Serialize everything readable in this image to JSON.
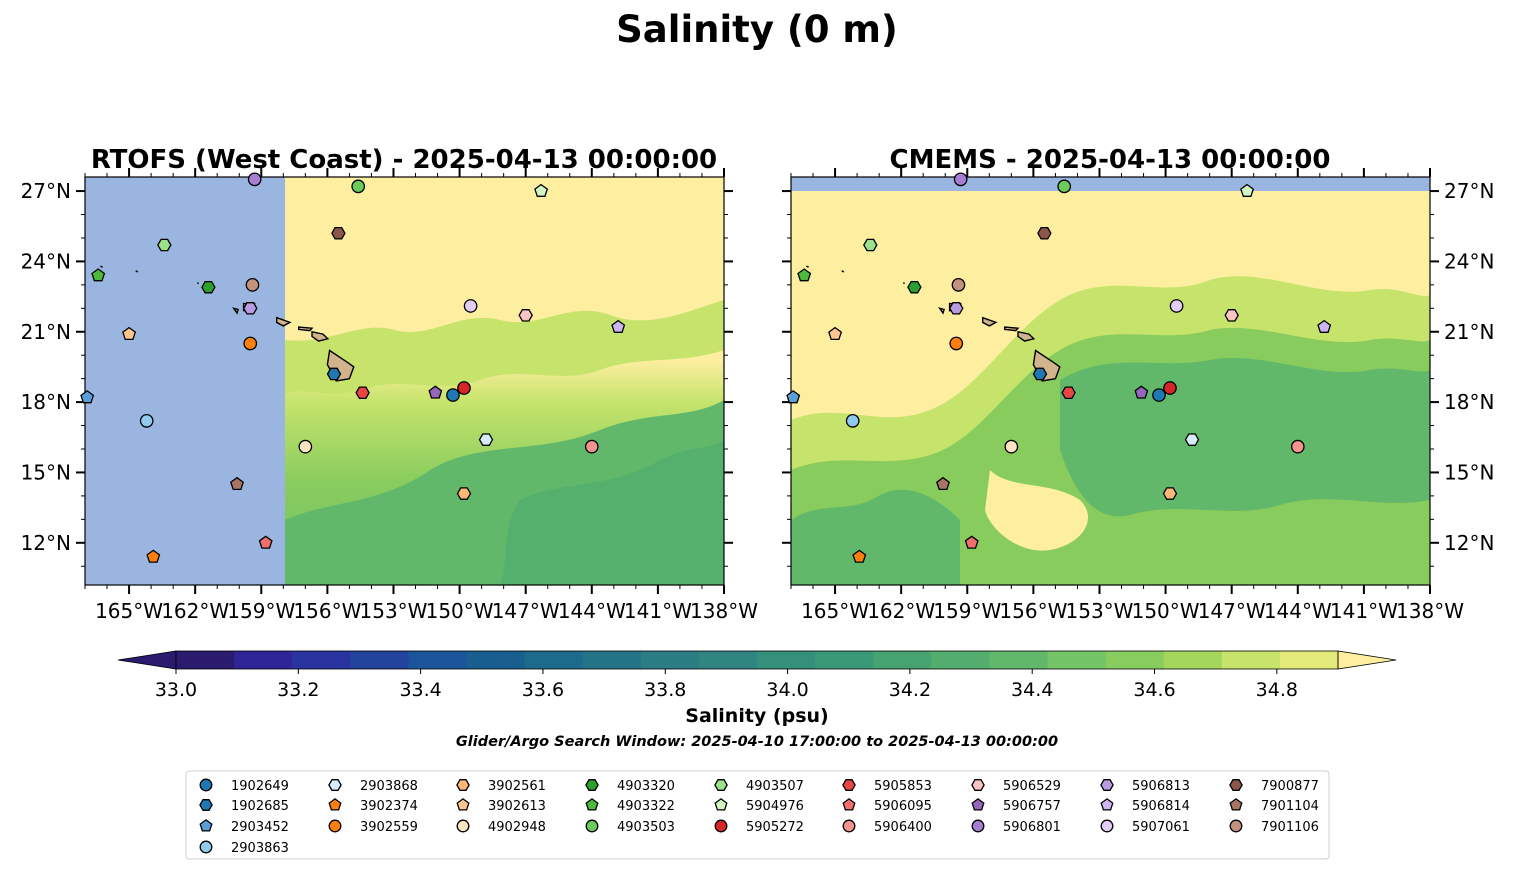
{
  "figure": {
    "title": "Salinity (0 m)",
    "search_window": "Glider/Argo Search Window: 2025-04-10 17:00:00 to 2025-04-13 00:00:00"
  },
  "panels": [
    {
      "id": "rtofs",
      "title": "RTOFS (West Coast) - 2025-04-13 00:00:00",
      "lat_labels_side": "left"
    },
    {
      "id": "cmems",
      "title": "CMEMS - 2025-04-13 00:00:00",
      "lat_labels_side": "right"
    }
  ],
  "axes": {
    "lon_ticks": [
      "165°W",
      "162°W",
      "159°W",
      "156°W",
      "153°W",
      "150°W",
      "147°W",
      "144°W",
      "141°W",
      "138°W"
    ],
    "lat_ticks": [
      "27°N",
      "24°N",
      "21°N",
      "18°N",
      "15°N",
      "12°N"
    ],
    "lon_values": [
      -165,
      -162,
      -159,
      -156,
      -153,
      -150,
      -147,
      -144,
      -141,
      -138
    ],
    "lat_values": [
      27,
      24,
      21,
      18,
      15,
      12
    ],
    "lon_range": [
      -167,
      -138
    ],
    "lat_range": [
      10.2,
      27.6
    ]
  },
  "colorbar": {
    "label": "Salinity (psu)",
    "tick_labels": [
      "33.0",
      "33.2",
      "33.4",
      "33.6",
      "33.8",
      "34.0",
      "34.2",
      "34.4",
      "34.6",
      "34.8"
    ],
    "tick_values": [
      33.0,
      33.2,
      33.4,
      33.6,
      33.8,
      34.0,
      34.2,
      34.4,
      34.6,
      34.8
    ],
    "range": [
      33.0,
      34.9
    ],
    "step": 0.1,
    "extend": "both",
    "colors": [
      "#2b1b6e",
      "#2f2596",
      "#2a34a0",
      "#22449d",
      "#1b549a",
      "#185f8f",
      "#1c6a8c",
      "#237486",
      "#2a7d83",
      "#2f8680",
      "#348f7b",
      "#399876",
      "#45a372",
      "#52ad6e",
      "#62b86a",
      "#73c466",
      "#88cc5e",
      "#a3d65b",
      "#c6e46c",
      "#e4ea7a"
    ],
    "land_mask_color": "#99b5e0",
    "high_color": "#fdeea0"
  },
  "floats": [
    {
      "id": "1902649",
      "marker": "circle",
      "color": "#1f77b4",
      "lon": -150.3,
      "lat": 18.3
    },
    {
      "id": "1902685",
      "marker": "hexagon",
      "color": "#1f77b4",
      "lon": -155.7,
      "lat": 19.2
    },
    {
      "id": "2903452",
      "marker": "pentagon",
      "color": "#5a9fd9",
      "lon": -166.9,
      "lat": 18.2
    },
    {
      "id": "2903863",
      "marker": "circle",
      "color": "#8ecbef",
      "lon": -164.2,
      "lat": 17.2
    },
    {
      "id": "2903868",
      "marker": "hexagon",
      "color": "#d6ecfb",
      "lon": -148.8,
      "lat": 16.4
    },
    {
      "id": "3902374",
      "marker": "pentagon",
      "color": "#ff7f0e",
      "lon": -163.9,
      "lat": 11.4
    },
    {
      "id": "3902559",
      "marker": "circle",
      "color": "#ff7f0e",
      "lon": -159.5,
      "lat": 20.5
    },
    {
      "id": "3902561",
      "marker": "hexagon",
      "color": "#ffb87a",
      "lon": -149.8,
      "lat": 14.1
    },
    {
      "id": "3902613",
      "marker": "pentagon",
      "color": "#ffc690",
      "lon": -165.0,
      "lat": 20.9
    },
    {
      "id": "4902948",
      "marker": "circle",
      "color": "#ffe4c4",
      "lon": -157.0,
      "lat": 16.1
    },
    {
      "id": "4903320",
      "marker": "hexagon",
      "color": "#2ca02c",
      "lon": -161.4,
      "lat": 22.9
    },
    {
      "id": "4903322",
      "marker": "pentagon",
      "color": "#4cbb3c",
      "lon": -166.4,
      "lat": 23.4
    },
    {
      "id": "4903503",
      "marker": "circle",
      "color": "#6bcc5c",
      "lon": -154.6,
      "lat": 27.2
    },
    {
      "id": "4903507",
      "marker": "hexagon",
      "color": "#9be28a",
      "lon": -163.4,
      "lat": 24.7
    },
    {
      "id": "5904976",
      "marker": "pentagon",
      "color": "#d3f7c4",
      "lon": -146.3,
      "lat": 27.0
    },
    {
      "id": "5905272",
      "marker": "circle",
      "color": "#d62728",
      "lon": -149.8,
      "lat": 18.6
    },
    {
      "id": "5905853",
      "marker": "hexagon",
      "color": "#e84545",
      "lon": -154.4,
      "lat": 18.4
    },
    {
      "id": "5906095",
      "marker": "pentagon",
      "color": "#f07070",
      "lon": -158.8,
      "lat": 12.0
    },
    {
      "id": "5906400",
      "marker": "circle",
      "color": "#f5948e",
      "lon": -144.0,
      "lat": 16.1
    },
    {
      "id": "5906529",
      "marker": "hexagon",
      "color": "#fbc4c4",
      "lon": -147.0,
      "lat": 21.7
    },
    {
      "id": "5906757",
      "marker": "pentagon",
      "color": "#9467bd",
      "lon": -151.1,
      "lat": 18.4
    },
    {
      "id": "5906801",
      "marker": "circle",
      "color": "#a87ed0",
      "lon": -159.3,
      "lat": 27.5
    },
    {
      "id": "5906813",
      "marker": "hexagon",
      "color": "#b99be0",
      "lon": -159.5,
      "lat": 22.0
    },
    {
      "id": "5906814",
      "marker": "pentagon",
      "color": "#cdb5f0",
      "lon": -142.8,
      "lat": 21.2
    },
    {
      "id": "5907061",
      "marker": "circle",
      "color": "#e3cdf7",
      "lon": -149.5,
      "lat": 22.1
    },
    {
      "id": "7900877",
      "marker": "hexagon",
      "color": "#8c564b",
      "lon": -155.5,
      "lat": 25.2
    },
    {
      "id": "7901104",
      "marker": "pentagon",
      "color": "#a97565",
      "lon": -160.1,
      "lat": 14.5
    },
    {
      "id": "7901106",
      "marker": "circle",
      "color": "#c4927f",
      "lon": -159.4,
      "lat": 23.0
    }
  ]
}
